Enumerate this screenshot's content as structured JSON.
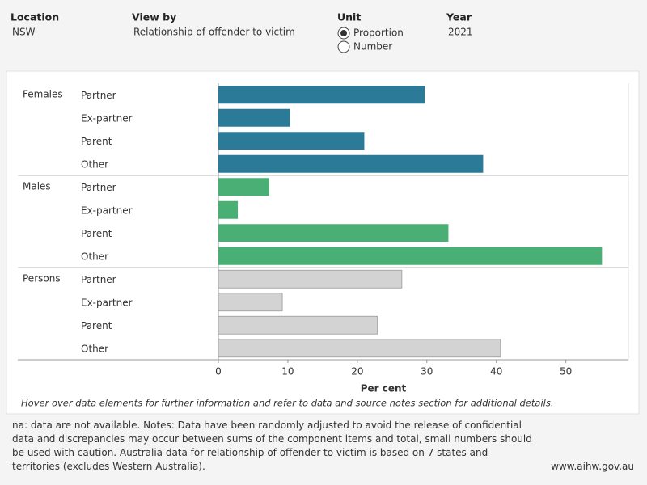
{
  "controls": {
    "location": {
      "label": "Location",
      "value": "NSW"
    },
    "view_by": {
      "label": "View by",
      "value": "Relationship of offender to victim"
    },
    "unit": {
      "label": "Unit",
      "options": [
        "Proportion",
        "Number"
      ],
      "selected": 0
    },
    "year": {
      "label": "Year",
      "value": "2021"
    }
  },
  "chart_data": {
    "type": "bar",
    "orientation": "horizontal",
    "categories": [
      "Partner",
      "Ex-partner",
      "Parent",
      "Other"
    ],
    "series": [
      {
        "name": "Females",
        "color": "#2b7b98",
        "values": [
          29.7,
          10.3,
          21.0,
          38.1
        ]
      },
      {
        "name": "Males",
        "color": "#4aaf74",
        "values": [
          7.3,
          2.8,
          33.1,
          55.2
        ]
      },
      {
        "name": "Persons",
        "color": "#d3d3d3",
        "values": [
          26.4,
          9.2,
          22.9,
          40.6
        ]
      }
    ],
    "xlabel": "Per cent",
    "xlim": [
      0,
      59
    ],
    "xticks": [
      0,
      10,
      20,
      30,
      40,
      50
    ],
    "note": "Hover over data elements for further information and refer to data and source notes section for additional details."
  },
  "footer": {
    "notes": "na: data are not available. Notes: Data have been randomly adjusted to avoid the release of confidential data and discrepancies may occur between sums of the component items and total, small numbers should be used with caution. Australia data for relationship of offender to victim is based on 7 states and territories (excludes Western Australia).",
    "site": "www.aihw.gov.au"
  }
}
